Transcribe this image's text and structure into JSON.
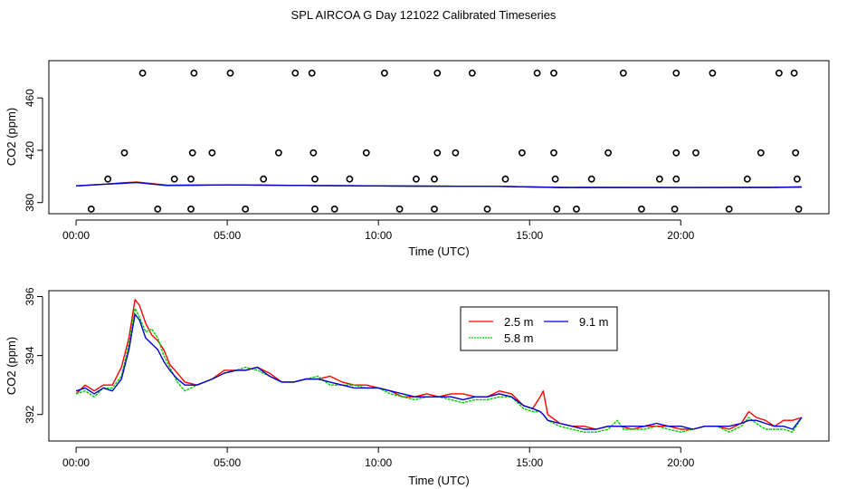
{
  "title": "SPL AIRCOA G  Day 121022  Calibrated Timeseries",
  "colors": {
    "s1": "#ff0000",
    "s2": "#00cc00",
    "s3": "#0000cc",
    "axis": "#000000"
  },
  "chart_data": [
    {
      "type": "scatter",
      "xlabel": "Time (UTC)",
      "ylabel": "CO2 (ppm)",
      "xlim": [
        -0.9,
        24.9
      ],
      "ylim": [
        371.5,
        488.5
      ],
      "x_ticks": [
        0,
        5,
        10,
        15,
        20
      ],
      "x_tick_labels": [
        "00:00",
        "05:00",
        "10:00",
        "15:00",
        "20:00"
      ],
      "y_ticks": [
        380,
        420,
        460
      ],
      "y_tick_labels": [
        "380",
        "420",
        "460"
      ],
      "reference_points": {
        "name": "calibration standards",
        "x": [
          2.2,
          3.9,
          5.1,
          7.25,
          7.8,
          10.2,
          11.95,
          13.1,
          15.25,
          15.8,
          18.1,
          19.85,
          21.05,
          23.25,
          23.75,
          1.6,
          3.85,
          4.5,
          6.7,
          7.85,
          9.6,
          11.95,
          12.55,
          14.75,
          15.8,
          17.6,
          19.85,
          20.5,
          22.65,
          23.8,
          1.05,
          3.25,
          3.8,
          6.2,
          7.9,
          9.05,
          11.25,
          11.85,
          14.2,
          15.85,
          17.05,
          19.3,
          19.85,
          22.2,
          23.85,
          0.5,
          2.7,
          3.8,
          5.6,
          7.9,
          8.55,
          10.7,
          11.85,
          13.6,
          15.9,
          16.55,
          18.7,
          19.8,
          21.6,
          23.9
        ],
        "y": [
          479,
          479,
          479,
          479,
          479,
          479,
          479,
          479,
          479,
          479,
          479,
          479,
          479,
          479,
          479,
          418,
          418,
          418,
          418,
          418,
          418,
          418,
          418,
          418,
          418,
          418,
          418,
          418,
          418,
          418,
          398,
          398,
          398,
          398,
          398,
          398,
          398,
          398,
          398,
          398,
          398,
          398,
          398,
          398,
          398,
          375,
          375,
          375,
          375,
          375,
          375,
          375,
          375,
          375,
          375,
          375,
          375,
          375,
          375,
          375
        ]
      },
      "series": [
        {
          "name": "2.5 m",
          "color": "#ff0000",
          "x": [
            0,
            2,
            3,
            5,
            8,
            11,
            14,
            16,
            20,
            23,
            24
          ],
          "values": [
            392.7,
            395.8,
            393.3,
            393.5,
            393.0,
            392.6,
            392.4,
            391.6,
            391.5,
            391.7,
            391.9
          ]
        },
        {
          "name": "5.8 m",
          "color": "#00cc00",
          "x": [
            0,
            2,
            3,
            5,
            8,
            11,
            14,
            16,
            20,
            23,
            24
          ],
          "values": [
            392.7,
            395.5,
            393.0,
            393.5,
            393.0,
            392.6,
            392.4,
            391.6,
            391.5,
            391.6,
            391.9
          ]
        },
        {
          "name": "9.1 m",
          "color": "#0000cc",
          "x": [
            0,
            2,
            3,
            5,
            8,
            11,
            14,
            16,
            20,
            23,
            24
          ],
          "values": [
            392.8,
            395.3,
            393.1,
            393.5,
            393.0,
            392.6,
            392.4,
            391.6,
            391.5,
            391.6,
            391.9
          ]
        }
      ]
    },
    {
      "type": "line",
      "xlabel": "Time (UTC)",
      "ylabel": "CO2 (ppm)",
      "xlim": [
        -0.9,
        24.9
      ],
      "ylim": [
        391.1,
        396.2
      ],
      "x_ticks": [
        0,
        5,
        10,
        15,
        20
      ],
      "x_tick_labels": [
        "00:00",
        "05:00",
        "10:00",
        "15:00",
        "20:00"
      ],
      "y_ticks": [
        392,
        394,
        396
      ],
      "y_tick_labels": [
        "392",
        "394",
        "396"
      ],
      "legend_position": "top-center",
      "series": [
        {
          "name": "2.5 m",
          "color": "#ff0000",
          "x": [
            0.0,
            0.3,
            0.6,
            0.9,
            1.2,
            1.5,
            1.75,
            1.95,
            2.1,
            2.3,
            2.5,
            2.7,
            2.9,
            3.1,
            3.35,
            3.6,
            4.0,
            4.5,
            4.9,
            5.3,
            5.6,
            6.0,
            6.4,
            6.8,
            7.2,
            7.6,
            8.0,
            8.4,
            8.8,
            9.2,
            9.6,
            10.0,
            10.4,
            10.8,
            11.2,
            11.6,
            12.0,
            12.4,
            12.8,
            13.2,
            13.6,
            14.0,
            14.4,
            14.8,
            15.1,
            15.35,
            15.45,
            15.6,
            16.0,
            16.4,
            16.8,
            17.2,
            17.6,
            18.0,
            18.4,
            18.8,
            19.2,
            19.6,
            20.0,
            20.4,
            20.8,
            21.2,
            21.6,
            22.0,
            22.25,
            22.5,
            22.8,
            23.1,
            23.4,
            23.7,
            24.0
          ],
          "values": [
            392.7,
            393.0,
            392.8,
            393.0,
            393.0,
            393.6,
            394.6,
            395.9,
            395.7,
            395.1,
            394.7,
            394.5,
            394.2,
            393.7,
            393.4,
            393.1,
            393.0,
            393.2,
            393.5,
            393.5,
            393.5,
            393.6,
            393.4,
            393.1,
            393.1,
            393.2,
            393.2,
            393.3,
            393.1,
            393.0,
            393.0,
            392.9,
            392.8,
            392.6,
            392.6,
            392.7,
            392.6,
            392.7,
            392.7,
            392.6,
            392.6,
            392.8,
            392.7,
            392.3,
            392.2,
            392.6,
            392.8,
            392.0,
            391.7,
            391.6,
            391.6,
            391.5,
            391.6,
            391.6,
            391.5,
            391.6,
            391.6,
            391.6,
            391.5,
            391.5,
            391.6,
            391.6,
            391.5,
            391.7,
            392.1,
            391.9,
            391.8,
            391.6,
            391.8,
            391.8,
            391.9
          ]
        },
        {
          "name": "5.8 m",
          "color": "#00cc00",
          "x": [
            0.0,
            0.3,
            0.6,
            0.9,
            1.2,
            1.5,
            1.75,
            1.95,
            2.1,
            2.3,
            2.5,
            2.7,
            2.9,
            3.1,
            3.35,
            3.6,
            4.0,
            4.5,
            4.9,
            5.3,
            5.6,
            6.0,
            6.4,
            6.8,
            7.2,
            7.6,
            8.0,
            8.4,
            8.8,
            9.2,
            9.6,
            10.0,
            10.4,
            10.8,
            11.2,
            11.6,
            12.0,
            12.4,
            12.8,
            13.2,
            13.6,
            14.0,
            14.4,
            14.8,
            15.1,
            15.35,
            15.45,
            15.6,
            16.0,
            16.4,
            16.8,
            17.2,
            17.6,
            17.9,
            18.1,
            18.4,
            18.8,
            19.2,
            19.6,
            20.0,
            20.4,
            20.8,
            21.2,
            21.6,
            22.0,
            22.25,
            22.5,
            22.8,
            23.1,
            23.4,
            23.7,
            24.0
          ],
          "values": [
            392.7,
            392.8,
            392.6,
            392.9,
            392.9,
            393.3,
            394.4,
            395.6,
            395.3,
            394.8,
            394.9,
            394.6,
            394.0,
            393.6,
            393.1,
            392.8,
            393.0,
            393.2,
            393.4,
            393.5,
            393.6,
            393.5,
            393.3,
            393.1,
            393.1,
            393.2,
            393.3,
            393.0,
            393.0,
            393.0,
            392.9,
            392.9,
            392.7,
            392.6,
            392.5,
            392.6,
            392.6,
            392.5,
            392.4,
            392.5,
            392.5,
            392.6,
            392.6,
            392.2,
            392.1,
            392.1,
            392.0,
            391.8,
            391.6,
            391.5,
            391.4,
            391.4,
            391.5,
            391.8,
            391.5,
            391.5,
            391.5,
            391.6,
            391.5,
            391.4,
            391.5,
            391.6,
            391.6,
            391.4,
            391.6,
            391.9,
            391.7,
            391.5,
            391.5,
            391.5,
            391.4,
            391.9
          ]
        },
        {
          "name": "9.1 m",
          "color": "#0000cc",
          "x": [
            0.0,
            0.3,
            0.6,
            0.9,
            1.2,
            1.5,
            1.75,
            1.95,
            2.1,
            2.3,
            2.5,
            2.7,
            2.9,
            3.1,
            3.35,
            3.6,
            4.0,
            4.5,
            4.9,
            5.3,
            5.6,
            6.0,
            6.4,
            6.8,
            7.2,
            7.6,
            8.0,
            8.4,
            8.8,
            9.2,
            9.6,
            10.0,
            10.4,
            10.8,
            11.2,
            11.6,
            12.0,
            12.4,
            12.8,
            13.2,
            13.6,
            14.0,
            14.4,
            14.8,
            15.1,
            15.35,
            15.45,
            15.6,
            16.0,
            16.4,
            16.8,
            17.2,
            17.6,
            18.0,
            18.4,
            18.8,
            19.2,
            19.6,
            20.0,
            20.4,
            20.8,
            21.2,
            21.6,
            22.0,
            22.25,
            22.5,
            22.8,
            23.1,
            23.4,
            23.7,
            24.0
          ],
          "values": [
            392.8,
            392.9,
            392.7,
            392.9,
            392.8,
            393.2,
            394.2,
            395.4,
            395.2,
            394.6,
            394.4,
            394.2,
            393.8,
            393.5,
            393.2,
            393.0,
            393.0,
            393.2,
            393.4,
            393.5,
            393.5,
            393.6,
            393.3,
            393.1,
            393.1,
            393.2,
            393.2,
            393.1,
            393.0,
            392.9,
            392.9,
            392.9,
            392.8,
            392.7,
            392.6,
            392.6,
            392.6,
            392.6,
            392.5,
            392.6,
            392.6,
            392.7,
            392.6,
            392.3,
            392.2,
            392.1,
            392.0,
            391.8,
            391.7,
            391.6,
            391.5,
            391.5,
            391.6,
            391.6,
            391.6,
            391.6,
            391.7,
            391.6,
            391.6,
            391.5,
            391.6,
            391.6,
            391.6,
            391.7,
            391.8,
            391.8,
            391.7,
            391.6,
            391.6,
            391.5,
            391.9
          ]
        }
      ]
    }
  ]
}
